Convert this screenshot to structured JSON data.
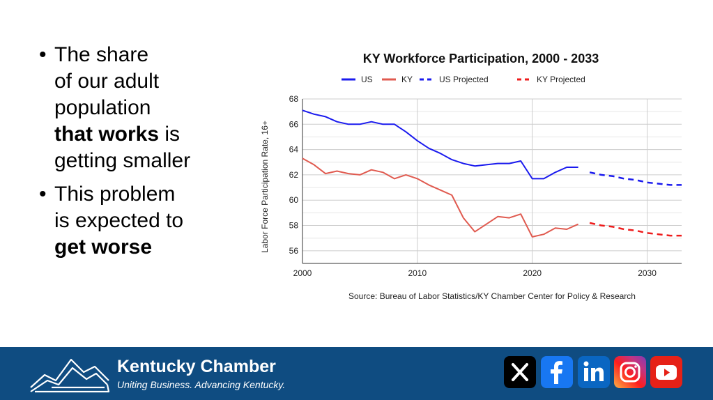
{
  "bullets": [
    {
      "lines": [
        [
          "The share",
          ""
        ],
        [
          "of our adult",
          ""
        ],
        [
          "population",
          ""
        ],
        [
          "",
          "that works",
          " is"
        ],
        [
          "getting smaller",
          ""
        ]
      ]
    },
    {
      "lines": [
        [
          "This problem",
          ""
        ],
        [
          "is expected to",
          ""
        ],
        [
          "",
          "get worse",
          ""
        ]
      ]
    }
  ],
  "footer": {
    "org_name": "Kentucky Chamber",
    "tagline": "Uniting Business. Advancing Kentucky.",
    "social": [
      "x-icon",
      "facebook-icon",
      "linkedin-icon",
      "instagram-icon",
      "youtube-icon"
    ],
    "colors": {
      "background": "#0f4c81"
    }
  },
  "chart_data": {
    "type": "line",
    "title": "KY Workforce Participation, 2000 - 2033",
    "ylabel": "Labor Force Participation Rate, 16+",
    "xlabel": "",
    "source": "Source: Bureau of Labor Statistics/KY Chamber Center for Policy & Research",
    "xlim": [
      2000,
      2033
    ],
    "ylim": [
      55,
      68
    ],
    "x_ticks": [
      2000,
      2010,
      2020,
      2030
    ],
    "y_ticks": [
      56,
      58,
      60,
      62,
      64,
      66,
      68
    ],
    "legend_position": "top",
    "series": [
      {
        "name": "US",
        "color": "#1a1aee",
        "dashed": false,
        "x": [
          2000,
          2001,
          2002,
          2003,
          2004,
          2005,
          2006,
          2007,
          2008,
          2009,
          2010,
          2011,
          2012,
          2013,
          2014,
          2015,
          2016,
          2017,
          2018,
          2019,
          2020,
          2021,
          2022,
          2023,
          2024
        ],
        "values": [
          67.1,
          66.8,
          66.6,
          66.2,
          66.0,
          66.0,
          66.2,
          66.0,
          66.0,
          65.4,
          64.7,
          64.1,
          63.7,
          63.2,
          62.9,
          62.7,
          62.8,
          62.9,
          62.9,
          63.1,
          61.7,
          61.7,
          62.2,
          62.6,
          62.6
        ]
      },
      {
        "name": "KY",
        "color": "#e05a4f",
        "dashed": false,
        "x": [
          2000,
          2001,
          2002,
          2003,
          2004,
          2005,
          2006,
          2007,
          2008,
          2009,
          2010,
          2011,
          2012,
          2013,
          2014,
          2015,
          2016,
          2017,
          2018,
          2019,
          2020,
          2021,
          2022,
          2023,
          2024
        ],
        "values": [
          63.3,
          62.8,
          62.1,
          62.3,
          62.1,
          62.0,
          62.4,
          62.2,
          61.7,
          62.0,
          61.7,
          61.2,
          60.8,
          60.4,
          58.6,
          57.5,
          58.1,
          58.7,
          58.6,
          58.9,
          57.1,
          57.3,
          57.8,
          57.7,
          58.1
        ]
      },
      {
        "name": "US Projected",
        "color": "#1a1aee",
        "dashed": true,
        "x": [
          2025,
          2026,
          2027,
          2028,
          2029,
          2030,
          2031,
          2032,
          2033
        ],
        "values": [
          62.2,
          62.0,
          61.9,
          61.7,
          61.6,
          61.4,
          61.3,
          61.2,
          61.2
        ]
      },
      {
        "name": "KY Projected",
        "color": "#ee1c1c",
        "dashed": true,
        "x": [
          2025,
          2026,
          2027,
          2028,
          2029,
          2030,
          2031,
          2032,
          2033
        ],
        "values": [
          58.2,
          58.0,
          57.9,
          57.7,
          57.6,
          57.4,
          57.3,
          57.2,
          57.2
        ]
      }
    ]
  }
}
